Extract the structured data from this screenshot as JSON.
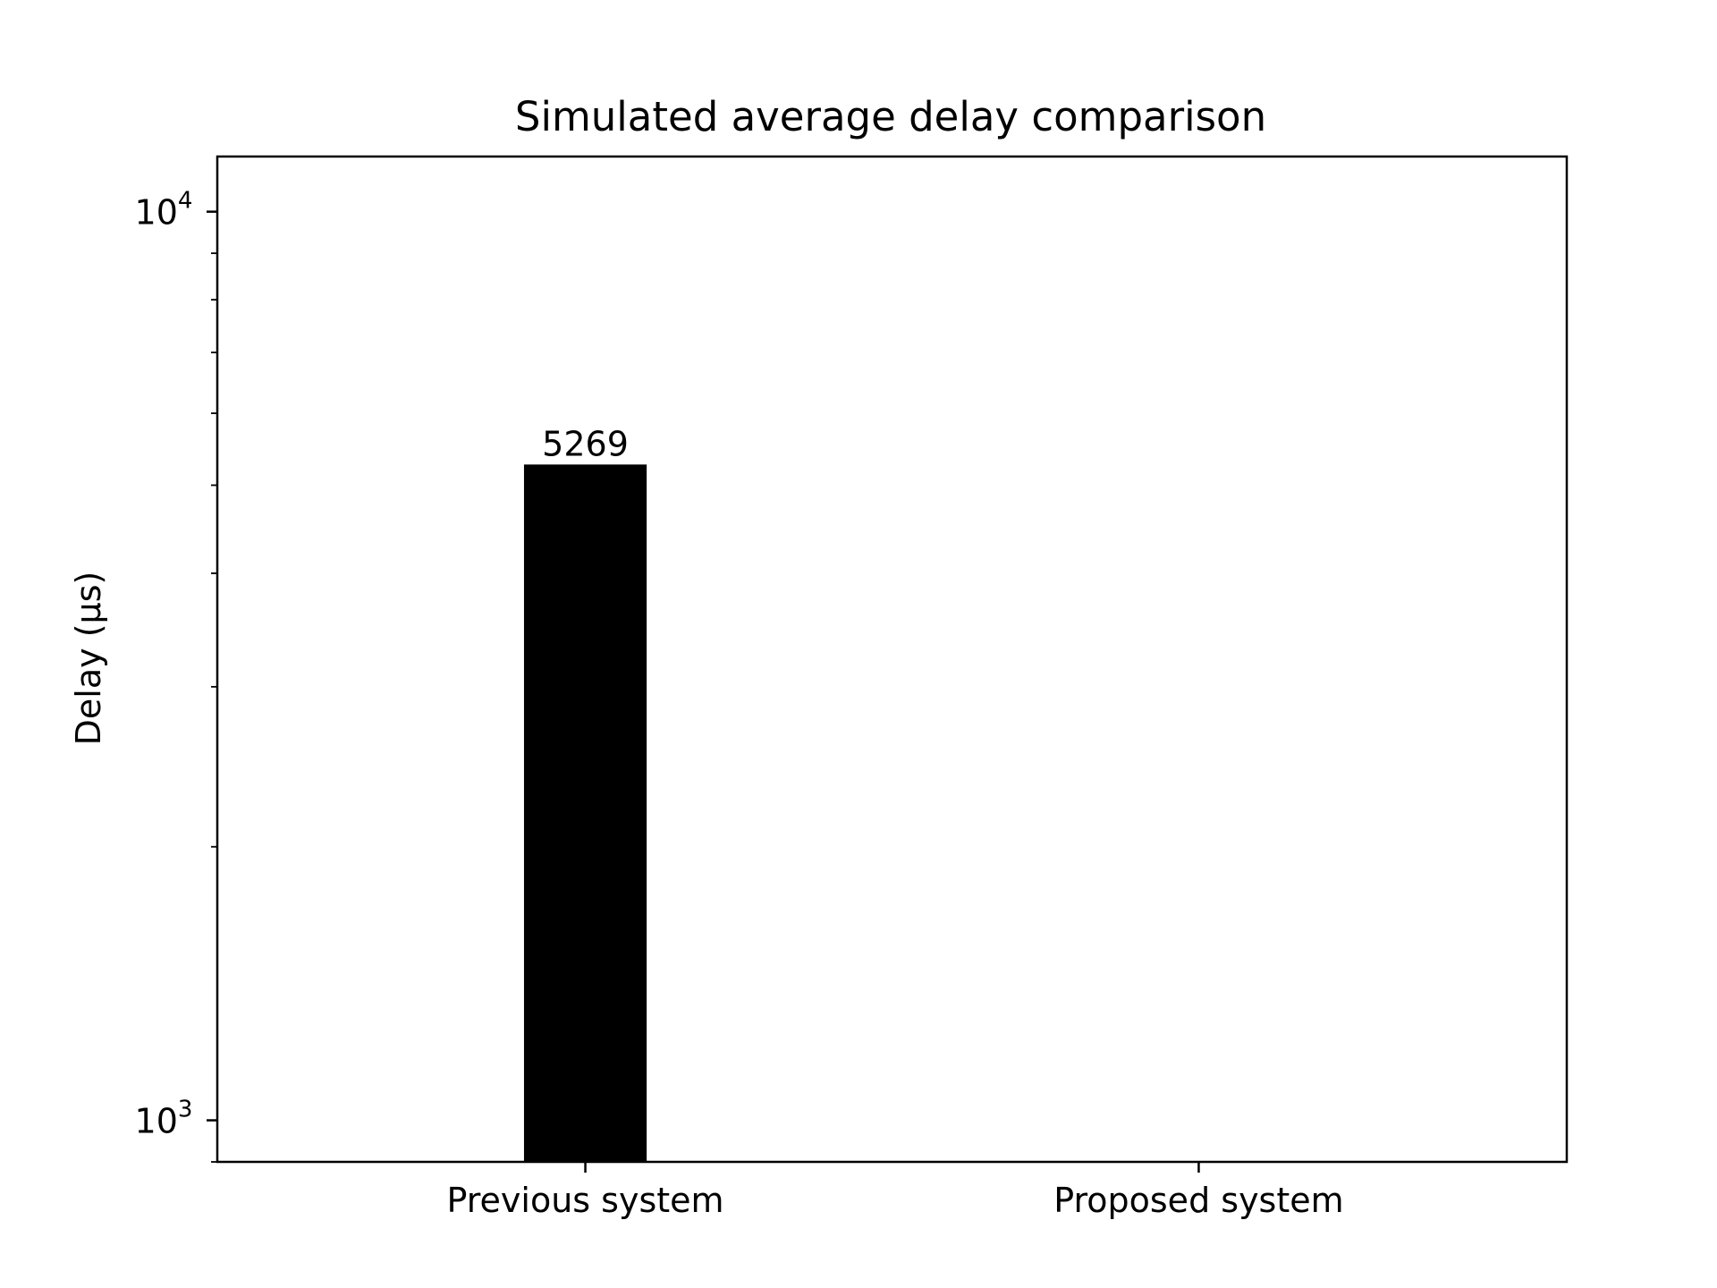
{
  "chart_data": {
    "type": "bar",
    "title": "Simulated average delay comparison",
    "xlabel": "",
    "ylabel": "Delay (µs)",
    "yscale": "log",
    "ylim": [
      900,
      11500
    ],
    "categories": [
      "Previous system",
      "Proposed system"
    ],
    "series": [
      {
        "values": [
          5269,
          null
        ],
        "data_labels": [
          "5269",
          ""
        ]
      }
    ],
    "y_major_ticks": [
      {
        "value": 1000,
        "base": "10",
        "exponent": "3"
      },
      {
        "value": 10000,
        "base": "10",
        "exponent": "4"
      }
    ],
    "y_minor_ticks": [
      900,
      2000,
      3000,
      4000,
      5000,
      6000,
      7000,
      8000,
      9000
    ],
    "grid": false,
    "legend": "none",
    "bar_color": "#000000"
  }
}
